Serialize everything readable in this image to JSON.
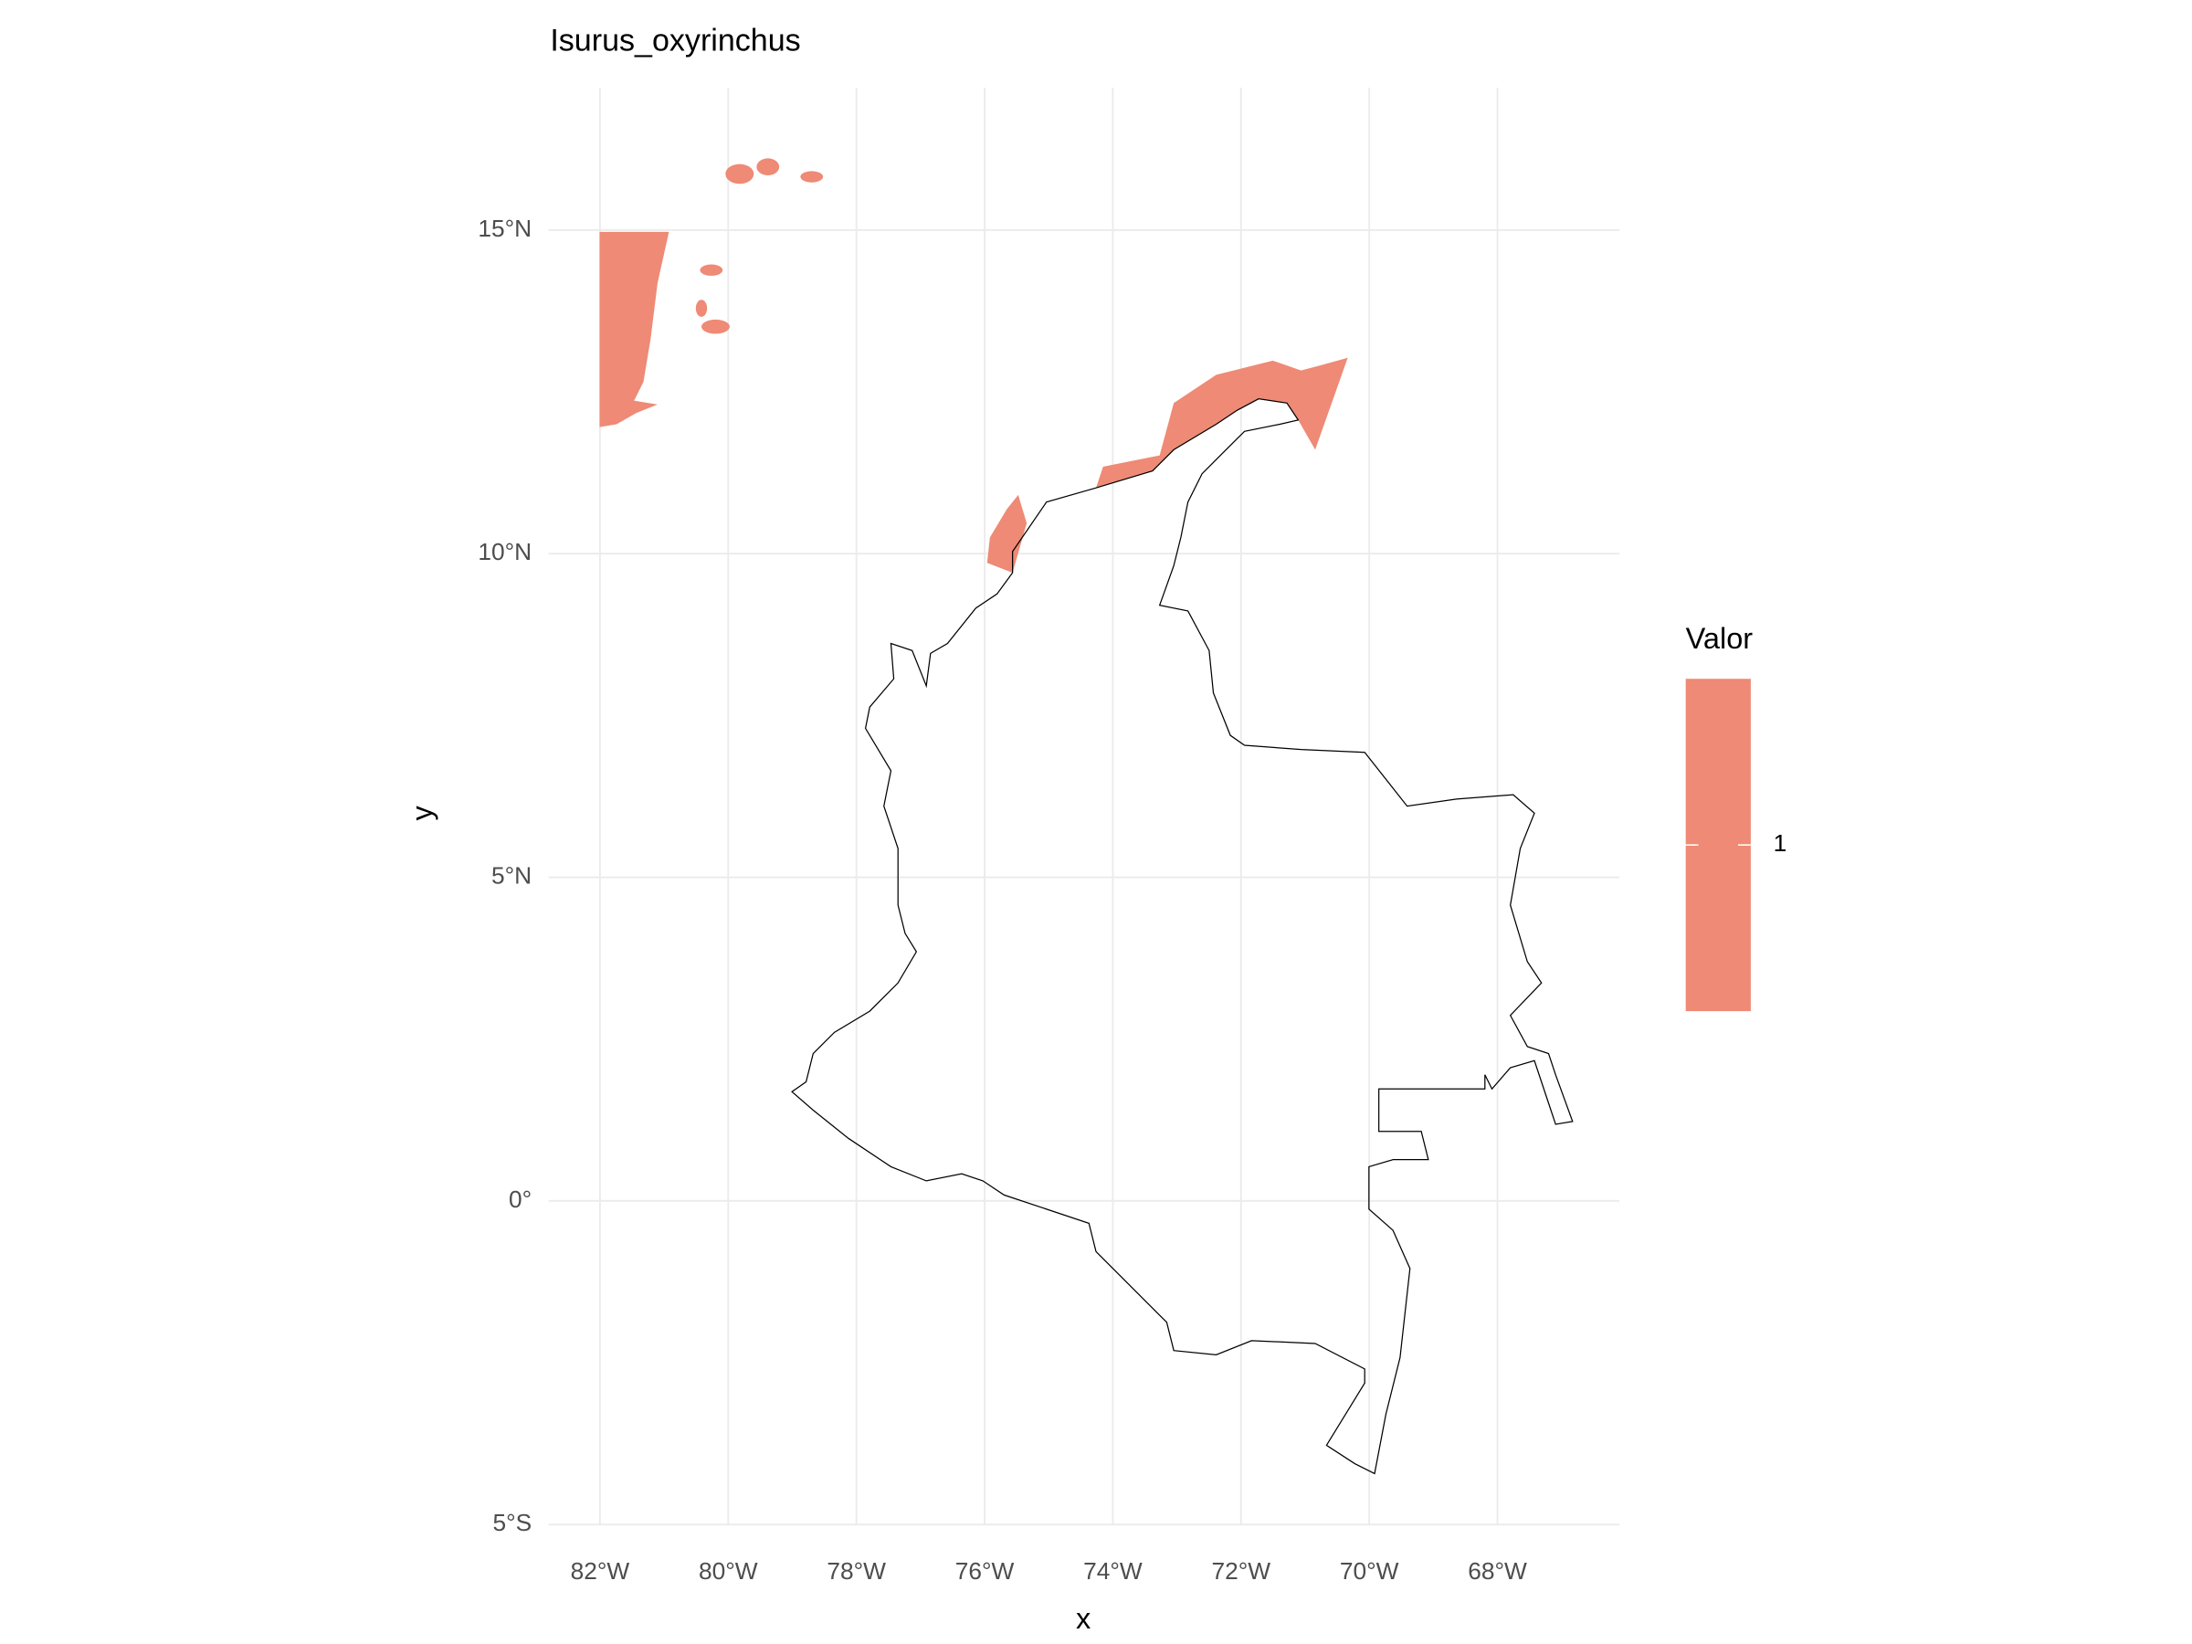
{
  "chart_data": {
    "type": "map",
    "title": "Isurus_oxyrinchus",
    "x_label": "x",
    "y_label": "y",
    "xlim": [
      -82.8,
      -66.1
    ],
    "ylim": [
      -5.0,
      17.2
    ],
    "xticks": [
      {
        "value": -82,
        "label": "82°W"
      },
      {
        "value": -80,
        "label": "80°W"
      },
      {
        "value": -78,
        "label": "78°W"
      },
      {
        "value": -76,
        "label": "76°W"
      },
      {
        "value": -74,
        "label": "74°W"
      },
      {
        "value": -72,
        "label": "72°W"
      },
      {
        "value": -70,
        "label": "70°W"
      },
      {
        "value": -68,
        "label": "68°W"
      }
    ],
    "yticks": [
      {
        "value": -5,
        "label": "5°S"
      },
      {
        "value": 0,
        "label": "0°"
      },
      {
        "value": 5,
        "label": "5°N"
      },
      {
        "value": 10,
        "label": "10°N"
      },
      {
        "value": 15,
        "label": "15°N"
      }
    ],
    "grid": true,
    "legend": {
      "title": "Valor",
      "ticks": [
        1
      ],
      "color": "#ee8a75"
    }
  }
}
